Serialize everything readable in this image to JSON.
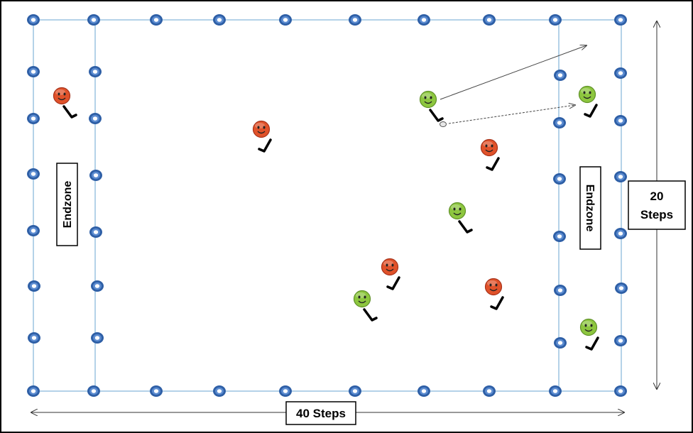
{
  "labels": {
    "endzone_left": "Endzone",
    "endzone_right": "Endzone",
    "width_label": "40 Steps",
    "height_label_line1": "20",
    "height_label_line2": "Steps"
  },
  "colors": {
    "field_line": "#9cc3e0",
    "cone_outer": "#2e5fa6",
    "cone_inner": "#ffffff",
    "team_red": "#e0522a",
    "team_green": "#8dc63f",
    "stick": "#000000",
    "arrow": "#444444"
  },
  "players": [
    {
      "team": "red"
    },
    {
      "team": "red"
    },
    {
      "team": "red"
    },
    {
      "team": "red"
    },
    {
      "team": "red"
    },
    {
      "team": "green"
    },
    {
      "team": "green"
    },
    {
      "team": "green"
    },
    {
      "team": "green"
    },
    {
      "team": "green"
    }
  ],
  "ball": {
    "shape": "ball"
  },
  "icons": {
    "player": "smiley-face-icon",
    "cone": "cone-icon",
    "stick": "hockey-stick-icon"
  }
}
